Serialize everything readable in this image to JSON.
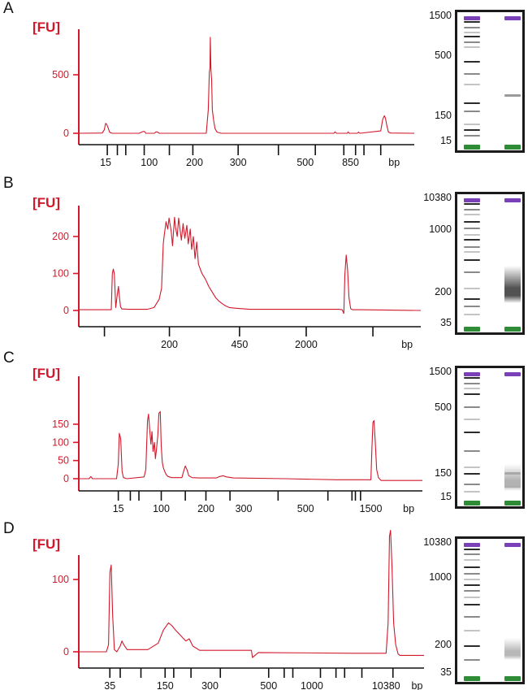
{
  "colors": {
    "trace": "#d1192b",
    "axis_y": "#d1192b",
    "axis_x": "#111111",
    "upper_marker": "#7b3fb7",
    "lower_marker": "#2e8b36",
    "gel_border": "#1a1a1a"
  },
  "panels": [
    {
      "letter": "A",
      "y_unit": "[FU]",
      "x_unit": "bp",
      "chart_data": {
        "type": "line",
        "ylabel": "[FU]",
        "xlabel": "bp",
        "ylim": [
          -80,
          930
        ],
        "xlim": [
          0,
          100
        ],
        "y_ticks": [
          0,
          500
        ],
        "x_tick_positions": [
          8.5,
          11.5,
          14,
          19.5,
          27,
          34,
          47.5,
          59.5,
          70.5,
          79,
          82.5,
          85,
          90
        ],
        "x_tick_labels": [
          {
            "x": 8,
            "label": "15"
          },
          {
            "x": 21,
            "label": "100"
          },
          {
            "x": 34.5,
            "label": "200"
          },
          {
            "x": 47.5,
            "label": "300"
          },
          {
            "x": 67.5,
            "label": "500"
          },
          {
            "x": 81,
            "label": "850"
          },
          {
            "x": 94,
            "label": "bp"
          }
        ],
        "series": [
          {
            "x": [
              0,
              7,
              7.6,
              8,
              8.3,
              8.7,
              9.2,
              10,
              18,
              19.2,
              19.6,
              20,
              22.5,
              23,
              23.4,
              24,
              38,
              38.6,
              38.9,
              39.1,
              39.2,
              39.4,
              39.6,
              39.8,
              40.2,
              40.6,
              41.2,
              42.5,
              76,
              76.4,
              76.8,
              80,
              80.3,
              80.6,
              83,
              83.4,
              83.8,
              90,
              90.6,
              91.1,
              91.4,
              91.8,
              92.3,
              93,
              100
            ],
            "values": [
              0,
              2,
              30,
              85,
              78,
              50,
              8,
              0,
              0,
              15,
              15,
              0,
              0,
              12,
              12,
              0,
              0,
              200,
              520,
              560,
              820,
              540,
              460,
              200,
              110,
              40,
              10,
              0,
              0,
              12,
              0,
              0,
              12,
              0,
              0,
              10,
              0,
              20,
              120,
              150,
              130,
              70,
              10,
              2,
              0
            ]
          }
        ]
      },
      "gel": {
        "labels": [
          "1500",
          "500",
          "150",
          "15"
        ],
        "label_positions": [
          0.03,
          0.33,
          0.78,
          0.97
        ],
        "ladder_bands": [
          0.05,
          0.09,
          0.13,
          0.16,
          0.2,
          0.24,
          0.35,
          0.44,
          0.52,
          0.66,
          0.72,
          0.82,
          0.86,
          0.9
        ],
        "sample_bands": [
          0.6
        ],
        "sample_smear": []
      }
    },
    {
      "letter": "B",
      "y_unit": "[FU]",
      "x_unit": "bp",
      "chart_data": {
        "type": "line",
        "ylabel": "[FU]",
        "xlabel": "bp",
        "ylim": [
          -35,
          290
        ],
        "xlim": [
          0,
          100
        ],
        "y_ticks": [
          0,
          100,
          200
        ],
        "x_tick_positions": [
          7.5,
          26.5,
          47,
          66.5,
          86
        ],
        "x_tick_labels": [
          {
            "x": 26.5,
            "label": "200"
          },
          {
            "x": 47,
            "label": "450"
          },
          {
            "x": 66.5,
            "label": "2000"
          },
          {
            "x": 96,
            "label": "bp"
          }
        ],
        "series": [
          {
            "x": [
              0,
              9.5,
              9.8,
              10.1,
              10.4,
              10.8,
              11.2,
              11.6,
              11.9,
              12.2,
              12.6,
              13,
              14.5,
              20,
              22,
              23.5,
              24.2,
              24.7,
              25,
              25.5,
              26,
              26.4,
              27,
              27.4,
              28,
              28.3,
              28.8,
              29.2,
              30,
              30.5,
              31,
              31.6,
              32,
              32.6,
              33,
              33.5,
              34,
              34.5,
              35,
              36,
              37,
              38,
              39,
              40,
              41,
              42,
              43,
              44,
              46,
              50,
              60,
              70,
              76,
              77,
              77.5,
              77.8,
              78.2,
              78.6,
              79,
              79.5,
              80,
              82,
              100
            ],
            "values": [
              2,
              2,
              100,
              112,
              98,
              8,
              40,
              65,
              35,
              10,
              4,
              4,
              3,
              3,
              8,
              30,
              60,
              180,
              205,
              240,
              220,
              250,
              215,
              175,
              252,
              225,
              200,
              250,
              190,
              235,
              195,
              230,
              180,
              220,
              165,
              200,
              140,
              185,
              125,
              100,
              85,
              65,
              50,
              35,
              25,
              18,
              12,
              8,
              6,
              3,
              3,
              3,
              3,
              2,
              -8,
              95,
              150,
              110,
              35,
              5,
              2,
              2,
              0
            ]
          }
        ]
      },
      "gel": {
        "labels": [
          "10380",
          "1000",
          "200",
          "35"
        ],
        "label_positions": [
          0.03,
          0.27,
          0.74,
          0.97
        ],
        "ladder_bands": [
          0.05,
          0.09,
          0.13,
          0.18,
          0.23,
          0.28,
          0.32,
          0.37,
          0.41,
          0.47,
          0.56,
          0.68,
          0.76,
          0.82,
          0.88
        ],
        "sample_bands": [],
        "sample_smear": [
          0.52,
          0.8,
          0.68
        ]
      }
    },
    {
      "letter": "C",
      "y_unit": "[FU]",
      "x_unit": "bp",
      "chart_data": {
        "type": "line",
        "ylabel": "[FU]",
        "xlabel": "bp",
        "ylim": [
          -15,
          195
        ],
        "xlim": [
          0,
          100
        ],
        "y_ticks": [
          0,
          50,
          100,
          150
        ],
        "x_tick_positions": [
          11.5,
          15,
          17.5,
          24,
          31,
          37,
          44,
          58,
          72.5,
          79.5,
          80.5,
          82
        ],
        "x_tick_labels": [
          {
            "x": 11.5,
            "label": "15"
          },
          {
            "x": 24,
            "label": "100"
          },
          {
            "x": 37,
            "label": "200"
          },
          {
            "x": 48,
            "label": "300"
          },
          {
            "x": 66,
            "label": "500"
          },
          {
            "x": 85,
            "label": "1500"
          },
          {
            "x": 96,
            "label": "bp"
          }
        ],
        "series": [
          {
            "x": [
              0,
              3,
              3.5,
              4,
              11,
              11.5,
              11.8,
              12.2,
              12.6,
              13,
              14,
              19,
              19.5,
              20,
              20.3,
              20.6,
              21,
              21.3,
              21.6,
              22,
              22.3,
              22.6,
              23,
              23.3,
              23.7,
              24,
              24.3,
              24.6,
              25,
              25.5,
              26,
              27,
              30,
              30.5,
              31,
              31.5,
              32,
              33,
              35,
              40,
              41,
              42,
              43,
              45,
              60,
              75,
              85,
              85.3,
              85.6,
              85.9,
              86.3,
              86.7,
              87.2,
              88,
              100
            ],
            "values": [
              0,
              0,
              6,
              0,
              0,
              40,
              125,
              110,
              20,
              3,
              0,
              5,
              25,
              160,
              178,
              140,
              95,
              130,
              75,
              100,
              55,
              80,
              120,
              180,
              185,
              90,
              45,
              30,
              20,
              10,
              6,
              3,
              3,
              20,
              35,
              25,
              8,
              3,
              2,
              2,
              6,
              8,
              5,
              2,
              0,
              -3,
              -3,
              80,
              155,
              160,
              100,
              25,
              3,
              -5,
              -5
            ]
          }
        ]
      },
      "gel": {
        "labels": [
          "1500",
          "500",
          "150",
          "15"
        ],
        "label_positions": [
          0.03,
          0.3,
          0.79,
          0.97
        ],
        "ladder_bands": [
          0.05,
          0.09,
          0.13,
          0.17,
          0.27,
          0.36,
          0.46,
          0.6,
          0.72,
          0.77,
          0.85,
          0.9
        ],
        "sample_bands": [
          0.76,
          0.86
        ],
        "sample_smear": [
          0.7,
          0.9,
          0.3
        ]
      }
    },
    {
      "letter": "D",
      "y_unit": "[FU]",
      "x_unit": "bp",
      "chart_data": {
        "type": "line",
        "ylabel": "[FU]",
        "xlabel": "bp",
        "ylim": [
          -15,
          195
        ],
        "xlim": [
          0,
          100
        ],
        "y_ticks": [
          0,
          100
        ],
        "x_tick_positions": [
          9,
          12,
          18,
          25,
          27.5,
          32.5,
          41,
          55,
          59.5,
          62,
          70,
          74.5,
          77,
          82,
          91
        ],
        "x_tick_labels": [
          {
            "x": 9,
            "label": "35"
          },
          {
            "x": 25,
            "label": "150"
          },
          {
            "x": 38,
            "label": "300"
          },
          {
            "x": 55,
            "label": "500"
          },
          {
            "x": 67.5,
            "label": "1000"
          },
          {
            "x": 89,
            "label": "10380"
          },
          {
            "x": 98,
            "label": "bp"
          }
        ],
        "series": [
          {
            "x": [
              0,
              8,
              8.6,
              9,
              9.4,
              9.8,
              10.3,
              11,
              12,
              12.5,
              13,
              14,
              20,
              23,
              24.5,
              26,
              27,
              28,
              29,
              30,
              31,
              32,
              33,
              35,
              50,
              50.3,
              52,
              80,
              89,
              89.6,
              90,
              90.3,
              90.7,
              91.2,
              91.8,
              92.5,
              93,
              96,
              100
            ],
            "values": [
              0,
              0,
              10,
              110,
              120,
              50,
              3,
              0,
              8,
              15,
              10,
              3,
              3,
              12,
              30,
              40,
              36,
              30,
              25,
              20,
              15,
              18,
              8,
              2,
              2,
              -8,
              -1,
              -2,
              -2,
              40,
              160,
              168,
              120,
              40,
              10,
              -3,
              -5,
              -5,
              -5
            ]
          }
        ]
      },
      "gel": {
        "labels": [
          "10380",
          "1000",
          "200",
          "35"
        ],
        "label_positions": [
          0.03,
          0.28,
          0.77,
          0.97
        ],
        "ladder_bands": [
          0.05,
          0.09,
          0.13,
          0.18,
          0.23,
          0.27,
          0.31,
          0.35,
          0.4,
          0.45,
          0.54,
          0.64,
          0.75,
          0.85
        ],
        "sample_bands": [],
        "sample_smear": [
          0.7,
          0.86,
          0.28
        ]
      }
    }
  ]
}
